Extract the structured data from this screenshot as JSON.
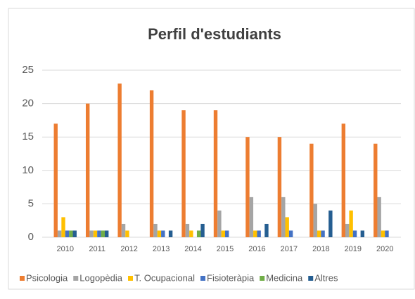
{
  "chart_data": {
    "type": "bar",
    "title": "Perfil d'estudiants",
    "categories": [
      "2010",
      "2011",
      "2012",
      "2013",
      "2014",
      "2015",
      "2016",
      "2017",
      "2018",
      "2019",
      "2020"
    ],
    "series": [
      {
        "name": "Psicologia",
        "color": "#ed7d31",
        "values": [
          17,
          20,
          23,
          22,
          19,
          19,
          15,
          15,
          14,
          17,
          14
        ]
      },
      {
        "name": "Logopèdia",
        "color": "#a5a5a5",
        "values": [
          1,
          1,
          2,
          2,
          2,
          4,
          6,
          6,
          5,
          2,
          6
        ]
      },
      {
        "name": "T. Ocupacional",
        "color": "#ffc000",
        "values": [
          3,
          1,
          1,
          1,
          1,
          1,
          1,
          3,
          1,
          4,
          1
        ]
      },
      {
        "name": "Fisioteràpia",
        "color": "#4472c4",
        "values": [
          1,
          1,
          0,
          1,
          0,
          1,
          1,
          1,
          1,
          1,
          1
        ]
      },
      {
        "name": "Medicina",
        "color": "#70ad47",
        "values": [
          1,
          1,
          0,
          0,
          1,
          0,
          0,
          0,
          0,
          0,
          0
        ]
      },
      {
        "name": "Altres",
        "color": "#255e91",
        "values": [
          1,
          1,
          0,
          1,
          2,
          0,
          2,
          0,
          4,
          1,
          0
        ]
      }
    ],
    "ylim": [
      0,
      25
    ],
    "yticks": [
      0,
      5,
      10,
      15,
      20,
      25
    ],
    "grid": true,
    "legend": "bottom"
  }
}
